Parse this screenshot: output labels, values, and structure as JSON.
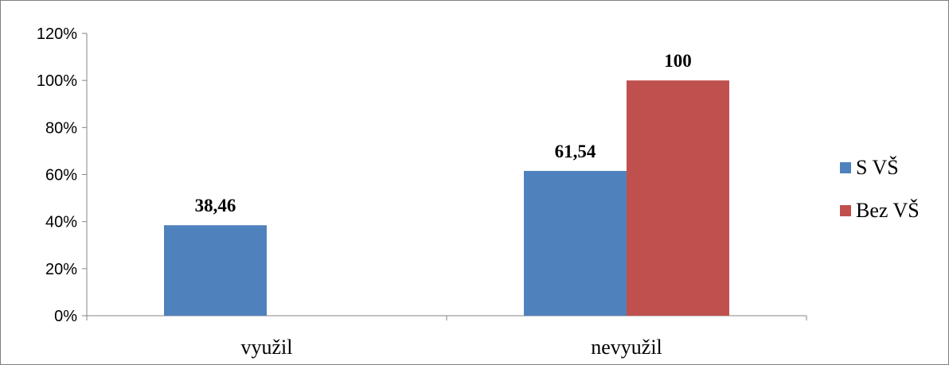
{
  "chart_data": {
    "type": "bar",
    "categories": [
      "využil",
      "nevyužil"
    ],
    "series": [
      {
        "name": "S VŠ",
        "values": [
          38.46,
          61.54
        ],
        "labels": [
          "38,46",
          "61,54"
        ],
        "color": "#4f81bd"
      },
      {
        "name": "Bez VŠ",
        "values": [
          null,
          100
        ],
        "labels": [
          "",
          "100"
        ],
        "color": "#c0504d"
      }
    ],
    "y_ticks": [
      "0%",
      "20%",
      "40%",
      "60%",
      "80%",
      "100%",
      "120%"
    ],
    "ylim": [
      0,
      120
    ],
    "grid": false,
    "legend_position": "right"
  }
}
